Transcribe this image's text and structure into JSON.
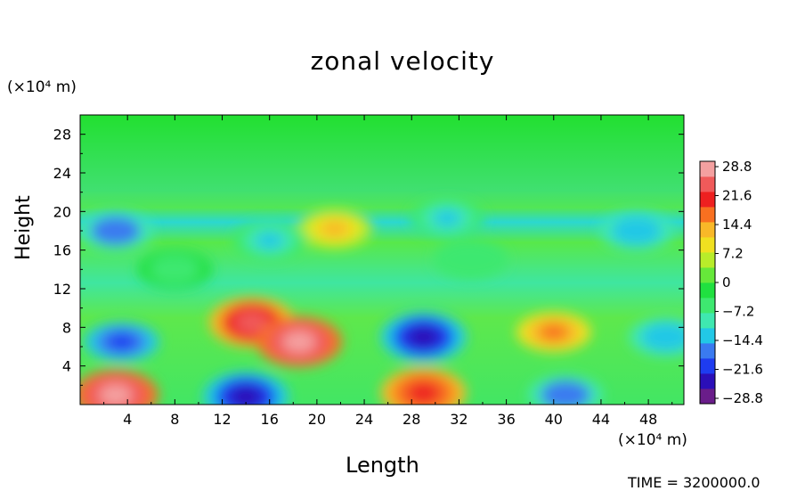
{
  "chart_data": {
    "type": "heatmap",
    "title": "zonal velocity",
    "xlabel": "Length",
    "ylabel": "Height",
    "x_unit": "(×10⁴ m)",
    "y_unit": "(×10⁴ m)",
    "xlim": [
      0,
      51
    ],
    "ylim": [
      0,
      30
    ],
    "x_ticks": [
      "4",
      "8",
      "12",
      "16",
      "20",
      "24",
      "28",
      "32",
      "36",
      "40",
      "44",
      "48"
    ],
    "y_ticks": [
      "4",
      "8",
      "12",
      "16",
      "20",
      "24",
      "28"
    ],
    "colorbar": {
      "min": -28.8,
      "max": 28.8,
      "tick_labels": [
        "28.8",
        "21.6",
        "14.4",
        "7.2",
        "0",
        "−7.2",
        "−14.4",
        "−21.6",
        "−28.8"
      ],
      "colors": [
        "#6a1d8a",
        "#2b0fb8",
        "#1e3cf0",
        "#3a7af0",
        "#22c8e6",
        "#3fe8b0",
        "#3ee870",
        "#20e040",
        "#66e83a",
        "#b8ec2a",
        "#f0e020",
        "#f8b828",
        "#f87020",
        "#ee2020",
        "#f05a5a",
        "#f4a0a0"
      ]
    },
    "features": [
      {
        "x": 3.5,
        "y": 6.5,
        "value": -20
      },
      {
        "x": 14.5,
        "y": 8.5,
        "value": 24
      },
      {
        "x": 18.5,
        "y": 6.5,
        "value": 27
      },
      {
        "x": 29.0,
        "y": 7.0,
        "value": -24
      },
      {
        "x": 40.0,
        "y": 7.5,
        "value": 17
      },
      {
        "x": 49.5,
        "y": 7.0,
        "value": -14
      },
      {
        "x": 3.0,
        "y": 1.0,
        "value": 28
      },
      {
        "x": 14.0,
        "y": 0.8,
        "value": -25
      },
      {
        "x": 29.0,
        "y": 1.2,
        "value": 21
      },
      {
        "x": 41.0,
        "y": 1.0,
        "value": -18
      },
      {
        "x": 3.0,
        "y": 18.0,
        "value": -18
      },
      {
        "x": 21.5,
        "y": 18.2,
        "value": 12
      },
      {
        "x": 16.0,
        "y": 17.0,
        "value": -11
      },
      {
        "x": 47.0,
        "y": 18.0,
        "value": -14
      },
      {
        "x": 31.0,
        "y": 19.3,
        "value": -13
      },
      {
        "x": 8.0,
        "y": 14.0,
        "value": -6
      },
      {
        "x": 33.0,
        "y": 15.0,
        "value": -7
      }
    ]
  },
  "footer": {
    "time_text": "TIME = 3200000.0"
  }
}
